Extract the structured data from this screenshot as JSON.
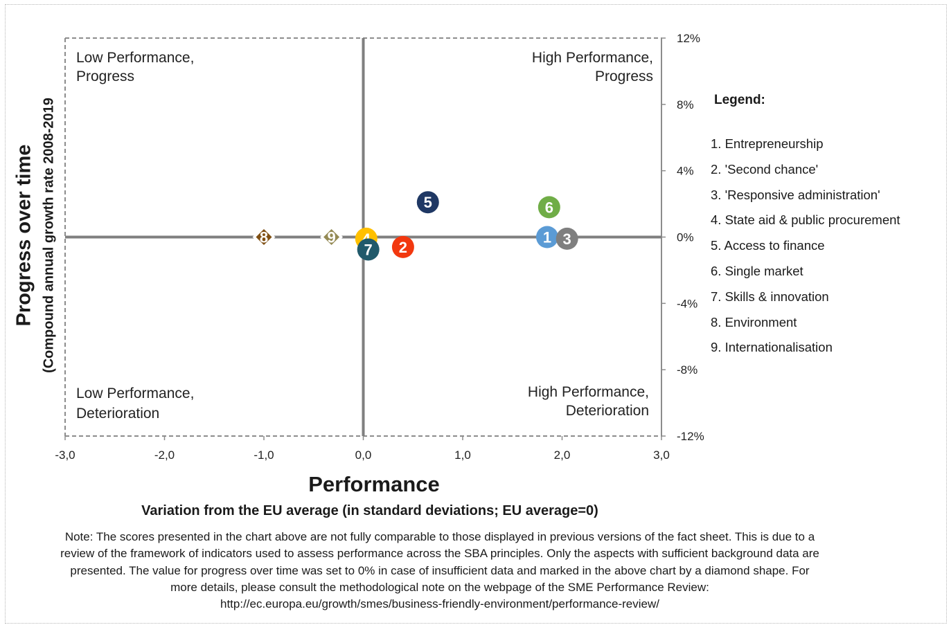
{
  "chart_data": {
    "type": "scatter",
    "xlabel": "Performance",
    "xlabel_sub": "Variation from the EU average (in standard deviations; EU average=0)",
    "ylabel": "Progress over time",
    "ylabel_sub": "(Compound annual growth rate 2008-2019",
    "xlim": [
      -3,
      3
    ],
    "ylim": [
      -12,
      12
    ],
    "x_ticks": [
      -3,
      -2,
      -1,
      0,
      1,
      2,
      3
    ],
    "x_tick_labels": [
      "-3,0",
      "-2,0",
      "-1,0",
      "0,0",
      "1,0",
      "2,0",
      "3,0"
    ],
    "y_ticks": [
      12,
      8,
      4,
      0,
      -4,
      -8,
      -12
    ],
    "y_tick_labels": [
      "12%",
      "8%",
      "4%",
      "0%",
      "-4%",
      "-8%",
      "-12%"
    ],
    "quadrants": {
      "top_left": [
        "Low Performance,",
        "Progress"
      ],
      "top_right": [
        "High Performance,",
        "Progress"
      ],
      "bottom_left": [
        "Low Performance,",
        "Deterioration"
      ],
      "bottom_right": [
        "High Performance,",
        "Deterioration"
      ]
    },
    "points": [
      {
        "label": "1",
        "x": 1.85,
        "y": 0.0,
        "shape": "circle",
        "color": "#5b9bd5"
      },
      {
        "label": "2",
        "x": 0.4,
        "y": -0.6,
        "shape": "circle",
        "color": "#f2380f"
      },
      {
        "label": "3",
        "x": 2.05,
        "y": -0.1,
        "shape": "circle",
        "color": "#7f7f7f"
      },
      {
        "label": "4",
        "x": 0.03,
        "y": -0.1,
        "shape": "circle",
        "color": "#ffc000"
      },
      {
        "label": "5",
        "x": 0.65,
        "y": 2.1,
        "shape": "circle",
        "color": "#1f3864"
      },
      {
        "label": "6",
        "x": 1.87,
        "y": 1.8,
        "shape": "circle",
        "color": "#70ad47"
      },
      {
        "label": "7",
        "x": 0.05,
        "y": -0.75,
        "shape": "circle",
        "color": "#215a6b"
      },
      {
        "label": "8",
        "x": -1.0,
        "y": 0.0,
        "shape": "diamond",
        "color": "#7f4f13"
      },
      {
        "label": "9",
        "x": -0.32,
        "y": 0.0,
        "shape": "diamond",
        "color": "#948a54"
      }
    ]
  },
  "legend": {
    "title": "Legend:",
    "items": [
      "1. Entrepreneurship",
      "2. 'Second chance'",
      "3. 'Responsive administration'",
      "4. State aid & public procurement",
      "5. Access to finance",
      "6. Single market",
      "7. Skills & innovation",
      "8. Environment",
      "9. Internationalisation"
    ]
  },
  "note_lines": [
    "Note: The scores presented in the chart above are not fully comparable to those displayed in previous versions of the fact sheet. This is due to a",
    "review of the framework of indicators used to assess performance across the SBA principles. Only the aspects with sufficient background data are",
    "presented. The value for progress over time was set to 0% in case of insufficient data and marked in the above chart by a diamond shape. For",
    "more details, please consult the methodological note on the webpage of the SME Performance Review:",
    "http://ec.europa.eu/growth/smes/business-friendly-environment/performance-review/"
  ]
}
